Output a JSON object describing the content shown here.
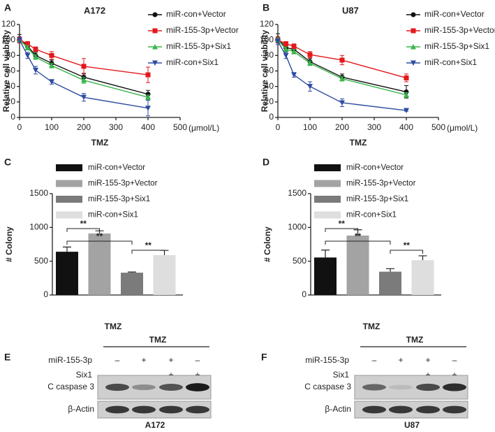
{
  "chart_data": [
    {
      "panel": "A",
      "type": "line",
      "title": "A172",
      "xlabel": "TMZ",
      "xunit": "(μmol/L)",
      "ylabel": "Relative cell viability",
      "x": [
        0,
        25,
        50,
        100,
        200,
        400
      ],
      "xlim": [
        0,
        500
      ],
      "xticks": [
        0,
        100,
        200,
        300,
        400,
        500
      ],
      "ylim": [
        0,
        120
      ],
      "yticks": [
        0,
        20,
        40,
        60,
        80,
        100,
        120
      ],
      "series": [
        {
          "name": "miR-con+Vector",
          "color": "#111111",
          "marker": "circle",
          "values": [
            102,
            92,
            80,
            70,
            52,
            30
          ],
          "errors": [
            5,
            4,
            4,
            4,
            5,
            5
          ]
        },
        {
          "name": "miR-155-3p+Vector",
          "color": "#e3191c",
          "marker": "square",
          "values": [
            100,
            95,
            88,
            80,
            66,
            55
          ],
          "errors": [
            4,
            3,
            3,
            5,
            10,
            10
          ]
        },
        {
          "name": "miR-155-3p+Six1",
          "color": "#3ab54a",
          "marker": "triangle-up",
          "values": [
            100,
            90,
            78,
            67,
            48,
            26
          ],
          "errors": [
            3,
            3,
            3,
            3,
            4,
            3
          ]
        },
        {
          "name": "miR-con+Six1",
          "color": "#2e4da0",
          "marker": "triangle-down",
          "values": [
            100,
            80,
            61,
            46,
            26,
            12
          ],
          "errors": [
            3,
            4,
            5,
            3,
            5,
            10
          ]
        }
      ]
    },
    {
      "panel": "B",
      "type": "line",
      "title": "U87",
      "xlabel": "TMZ",
      "xunit": "(μmol/L)",
      "ylabel": "Relative cell viability",
      "x": [
        0,
        25,
        50,
        100,
        200,
        400
      ],
      "xlim": [
        0,
        500
      ],
      "xticks": [
        0,
        100,
        200,
        300,
        400,
        500
      ],
      "ylim": [
        0,
        120
      ],
      "yticks": [
        0,
        20,
        40,
        60,
        80,
        100,
        120
      ],
      "series": [
        {
          "name": "miR-con+Vector",
          "color": "#111111",
          "marker": "circle",
          "values": [
            102,
            90,
            88,
            72,
            52,
            33
          ],
          "errors": [
            6,
            5,
            5,
            4,
            4,
            8
          ]
        },
        {
          "name": "miR-155-3p+Vector",
          "color": "#e3191c",
          "marker": "square",
          "values": [
            100,
            95,
            92,
            81,
            74,
            51
          ],
          "errors": [
            4,
            3,
            3,
            4,
            6,
            5
          ]
        },
        {
          "name": "miR-155-3p+Six1",
          "color": "#3ab54a",
          "marker": "triangle-up",
          "values": [
            100,
            88,
            85,
            70,
            50,
            29
          ],
          "errors": [
            3,
            3,
            3,
            3,
            3,
            3
          ]
        },
        {
          "name": "miR-con+Six1",
          "color": "#2e4da0",
          "marker": "triangle-down",
          "values": [
            98,
            80,
            55,
            40,
            19,
            9
          ],
          "errors": [
            4,
            4,
            3,
            6,
            5,
            1
          ]
        }
      ]
    },
    {
      "panel": "C",
      "type": "bar",
      "xlabel": "TMZ",
      "ylabel": "# Colony",
      "categories": [
        null
      ],
      "ylim": [
        0,
        1500
      ],
      "yticks": [
        0,
        500,
        1000,
        1500
      ],
      "annotations": [
        "**",
        "**",
        "**"
      ],
      "series": [
        {
          "name": "miR-con+Vector",
          "color": "#111111",
          "values": [
            640
          ],
          "errors": [
            70
          ]
        },
        {
          "name": "miR-155-3p+Vector",
          "color": "#a3a3a3",
          "values": [
            910
          ],
          "errors": [
            40
          ]
        },
        {
          "name": "miR-155-3p+Six1",
          "color": "#7b7b7b",
          "values": [
            330
          ],
          "errors": [
            10
          ]
        },
        {
          "name": "miR-con+Six1",
          "color": "#dedede",
          "values": [
            590
          ],
          "errors": [
            70
          ]
        }
      ]
    },
    {
      "panel": "D",
      "type": "bar",
      "xlabel": "TMZ",
      "ylabel": "# Colony",
      "categories": [
        null
      ],
      "ylim": [
        0,
        1500
      ],
      "yticks": [
        0,
        500,
        1000,
        1500
      ],
      "annotations": [
        "**",
        "**",
        "**"
      ],
      "series": [
        {
          "name": "miR-con+Vector",
          "color": "#111111",
          "values": [
            555
          ],
          "errors": [
            110
          ]
        },
        {
          "name": "miR-155-3p+Vector",
          "color": "#a3a3a3",
          "values": [
            880
          ],
          "errors": [
            85
          ]
        },
        {
          "name": "miR-155-3p+Six1",
          "color": "#7b7b7b",
          "values": [
            345
          ],
          "errors": [
            45
          ]
        },
        {
          "name": "miR-con+Six1",
          "color": "#dedede",
          "values": [
            515
          ],
          "errors": [
            65
          ]
        }
      ]
    }
  ],
  "blots": [
    {
      "panel": "E",
      "header": "TMZ",
      "rows": [
        {
          "label": "miR-155-3p",
          "signs": [
            "–",
            "+",
            "+",
            "–"
          ]
        },
        {
          "label": "Six1",
          "signs": [
            "–",
            "–",
            "+",
            "+"
          ]
        }
      ],
      "bands": [
        "C caspase 3",
        "β-Actin"
      ],
      "caption": "A172"
    },
    {
      "panel": "F",
      "header": "TMZ",
      "rows": [
        {
          "label": "miR-155-3p",
          "signs": [
            "–",
            "+",
            "+",
            "–"
          ]
        },
        {
          "label": "Six1",
          "signs": [
            "–",
            "–",
            "+",
            "+"
          ]
        }
      ],
      "bands": [
        "C caspase 3",
        "β-Actin"
      ],
      "caption": "U87"
    }
  ]
}
